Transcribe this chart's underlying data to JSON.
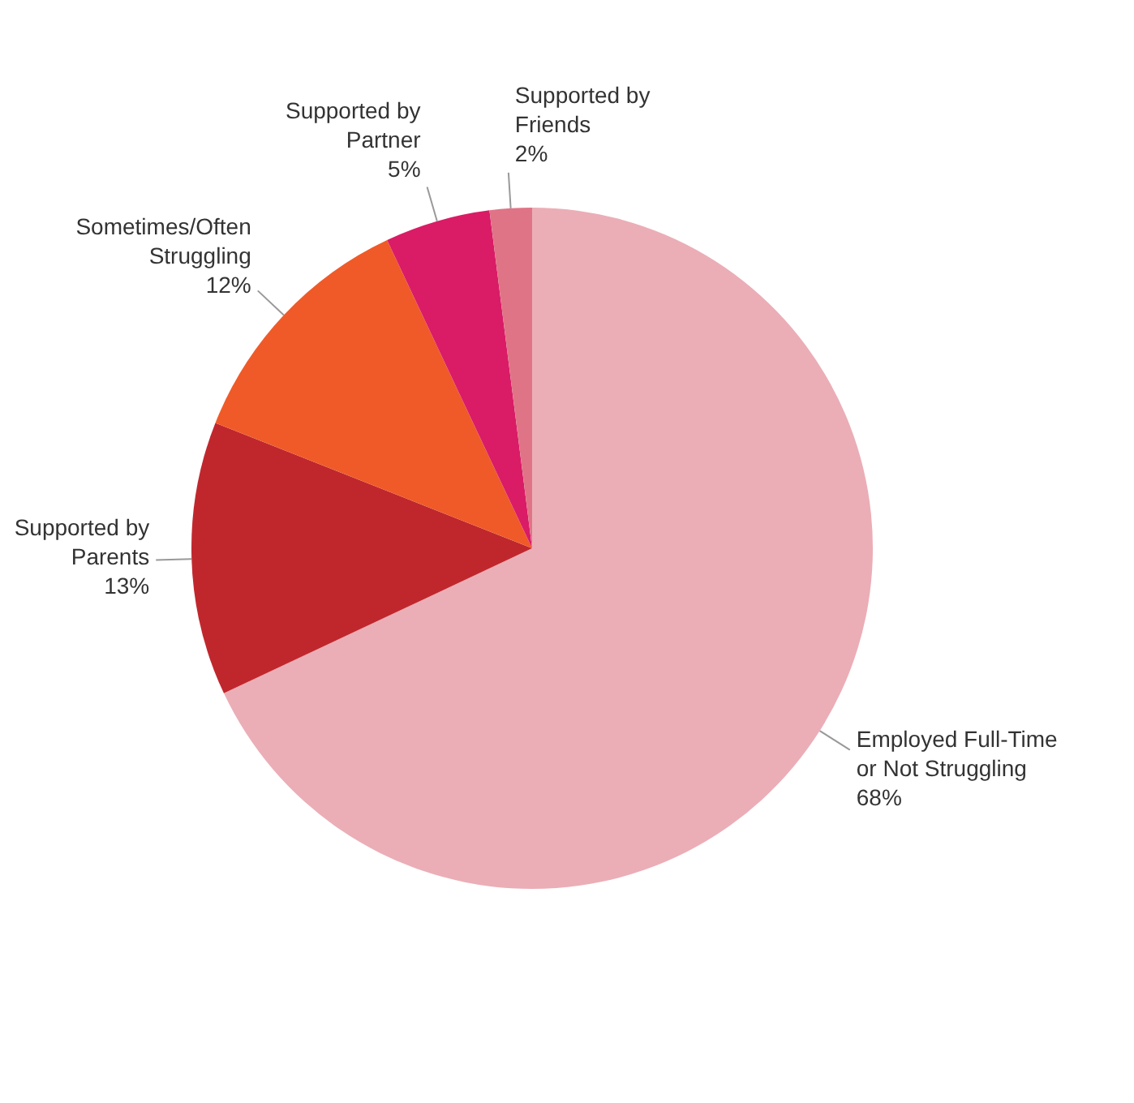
{
  "chart_data": {
    "type": "pie",
    "categories": [
      "Employed Full-Time or Not Struggling",
      "Supported by Parents",
      "Sometimes/Often Struggling",
      "Supported by Partner",
      "Supported by Friends"
    ],
    "values": [
      68,
      13,
      12,
      5,
      2
    ],
    "colors": [
      "#ebaeb6",
      "#c0272d",
      "#f05a28",
      "#d91c65",
      "#e07487"
    ],
    "value_labels": [
      "68%",
      "13%",
      "12%",
      "5%",
      "2%"
    ],
    "legend": false
  }
}
